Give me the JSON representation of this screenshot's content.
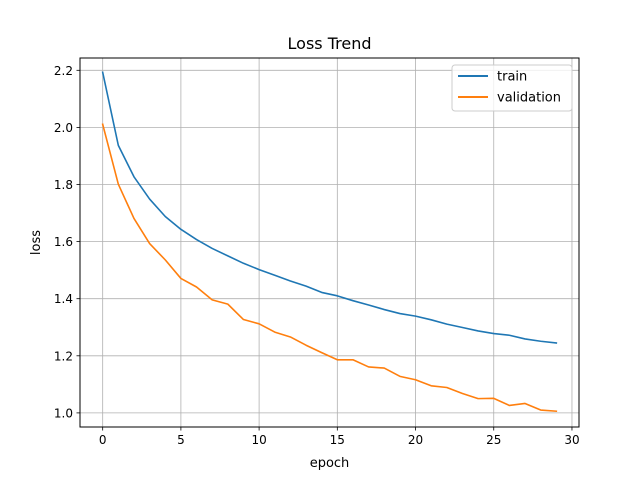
{
  "chart_data": {
    "type": "line",
    "title": "Loss Trend",
    "xlabel": "epoch",
    "ylabel": "loss",
    "xlim": [
      -1.45,
      30.45
    ],
    "ylim": [
      0.9506,
      2.2431
    ],
    "xticks": [
      0,
      5,
      10,
      15,
      20,
      25,
      30
    ],
    "yticks": [
      1.0,
      1.2,
      1.4,
      1.6,
      1.8,
      2.0,
      2.2
    ],
    "xtick_labels": [
      "0",
      "5",
      "10",
      "15",
      "20",
      "25",
      "30"
    ],
    "ytick_labels": [
      "1.0",
      "1.2",
      "1.4",
      "1.6",
      "1.8",
      "2.0",
      "2.2"
    ],
    "grid": true,
    "legend_position": "top-right",
    "x": [
      0,
      1,
      2,
      3,
      4,
      5,
      6,
      7,
      8,
      9,
      10,
      11,
      12,
      13,
      14,
      15,
      16,
      17,
      18,
      19,
      20,
      21,
      22,
      23,
      24,
      25,
      26,
      27,
      28,
      29
    ],
    "series": [
      {
        "name": "train",
        "color": "#1f77b4",
        "values": [
          2.193,
          1.937,
          1.827,
          1.749,
          1.688,
          1.643,
          1.607,
          1.576,
          1.55,
          1.524,
          1.502,
          1.482,
          1.462,
          1.444,
          1.422,
          1.41,
          1.393,
          1.378,
          1.362,
          1.348,
          1.339,
          1.326,
          1.311,
          1.299,
          1.287,
          1.278,
          1.272,
          1.259,
          1.251,
          1.245
        ]
      },
      {
        "name": "validation",
        "color": "#ff7f0e",
        "values": [
          2.011,
          1.801,
          1.681,
          1.593,
          1.536,
          1.471,
          1.441,
          1.396,
          1.381,
          1.327,
          1.312,
          1.283,
          1.266,
          1.237,
          1.211,
          1.186,
          1.186,
          1.161,
          1.157,
          1.128,
          1.116,
          1.095,
          1.089,
          1.068,
          1.05,
          1.051,
          1.026,
          1.033,
          1.01,
          1.006
        ]
      }
    ]
  }
}
